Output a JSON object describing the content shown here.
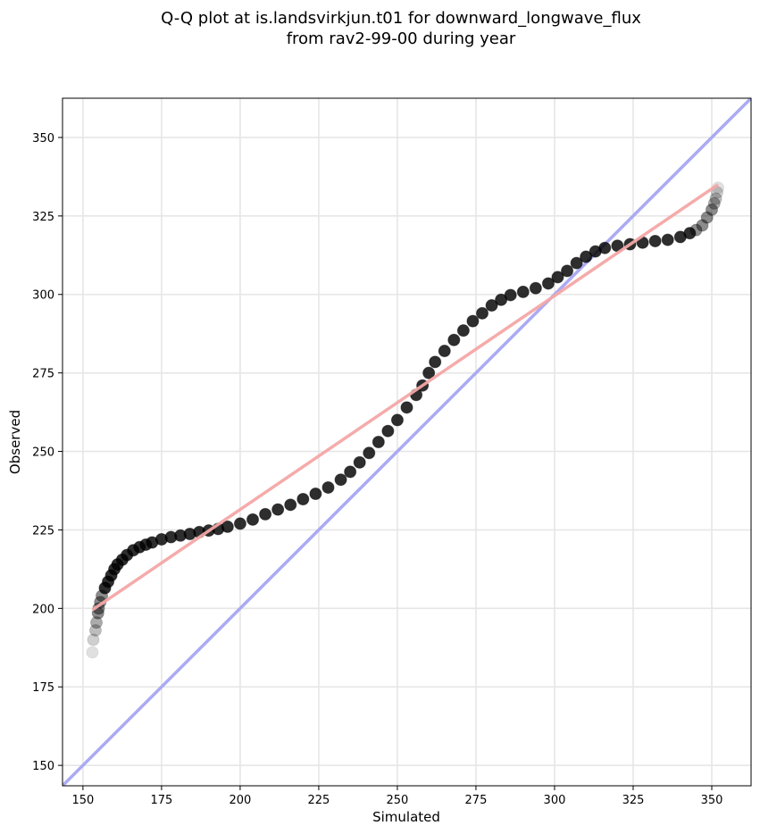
{
  "chart_data": {
    "type": "scatter",
    "title": [
      "Q-Q plot at is.landsvirkjun.t01 for downward_longwave_flux",
      "from rav2-99-00 during year"
    ],
    "xlabel": "Simulated",
    "ylabel": "Observed",
    "xlim": [
      143.5,
      362.5
    ],
    "ylim": [
      143.5,
      362.5
    ],
    "xticks": [
      150,
      175,
      200,
      225,
      250,
      275,
      300,
      325,
      350
    ],
    "yticks": [
      150,
      175,
      200,
      225,
      250,
      275,
      300,
      325,
      350
    ],
    "grid": true,
    "series": [
      {
        "kind": "quantile-points",
        "color": "#000000",
        "points": [
          [
            153.0,
            186.0
          ],
          [
            153.3,
            190.0
          ],
          [
            154.0,
            193.0
          ],
          [
            154.3,
            195.5
          ],
          [
            154.8,
            198.5
          ],
          [
            155.0,
            200.0
          ],
          [
            155.5,
            202.0
          ],
          [
            156.0,
            204.0
          ],
          [
            157.0,
            206.5
          ],
          [
            158.0,
            208.5
          ],
          [
            159.0,
            210.5
          ],
          [
            160.0,
            212.5
          ],
          [
            161.0,
            214.0
          ],
          [
            162.5,
            215.5
          ],
          [
            164.0,
            217.0
          ],
          [
            166.0,
            218.5
          ],
          [
            168.0,
            219.5
          ],
          [
            170.0,
            220.3
          ],
          [
            172.0,
            221.0
          ],
          [
            175.0,
            222.0
          ],
          [
            178.0,
            222.7
          ],
          [
            181.0,
            223.2
          ],
          [
            184.0,
            223.7
          ],
          [
            187.0,
            224.3
          ],
          [
            190.0,
            224.8
          ],
          [
            193.0,
            225.3
          ],
          [
            196.0,
            226.0
          ],
          [
            200.0,
            227.0
          ],
          [
            204.0,
            228.3
          ],
          [
            208.0,
            230.0
          ],
          [
            212.0,
            231.5
          ],
          [
            216.0,
            233.0
          ],
          [
            220.0,
            234.8
          ],
          [
            224.0,
            236.5
          ],
          [
            228.0,
            238.5
          ],
          [
            232.0,
            241.0
          ],
          [
            235.0,
            243.5
          ],
          [
            238.0,
            246.5
          ],
          [
            241.0,
            249.5
          ],
          [
            244.0,
            253.0
          ],
          [
            247.0,
            256.5
          ],
          [
            250.0,
            260.0
          ],
          [
            253.0,
            264.0
          ],
          [
            256.0,
            268.0
          ],
          [
            258.0,
            271.0
          ],
          [
            260.0,
            275.0
          ],
          [
            262.0,
            278.5
          ],
          [
            265.0,
            282.0
          ],
          [
            268.0,
            285.5
          ],
          [
            271.0,
            288.5
          ],
          [
            274.0,
            291.5
          ],
          [
            277.0,
            294.0
          ],
          [
            280.0,
            296.5
          ],
          [
            283.0,
            298.3
          ],
          [
            286.0,
            299.8
          ],
          [
            290.0,
            300.8
          ],
          [
            294.0,
            302.0
          ],
          [
            298.0,
            303.5
          ],
          [
            301.0,
            305.5
          ],
          [
            304.0,
            307.5
          ],
          [
            307.0,
            310.0
          ],
          [
            310.0,
            312.0
          ],
          [
            313.0,
            313.7
          ],
          [
            316.0,
            314.8
          ],
          [
            320.0,
            315.5
          ],
          [
            324.0,
            316.0
          ],
          [
            328.0,
            316.5
          ],
          [
            332.0,
            317.0
          ],
          [
            336.0,
            317.4
          ],
          [
            340.0,
            318.3
          ],
          [
            343.0,
            319.5
          ],
          [
            345.0,
            320.5
          ],
          [
            347.0,
            322.0
          ],
          [
            348.5,
            324.5
          ],
          [
            350.0,
            327.0
          ],
          [
            350.8,
            329.0
          ],
          [
            351.3,
            330.5
          ],
          [
            351.7,
            332.5
          ],
          [
            352.0,
            334.0
          ]
        ]
      },
      {
        "kind": "fit-line",
        "color": "#f4a6a6",
        "points": [
          [
            153.0,
            199.5
          ],
          [
            352.0,
            335.0
          ]
        ]
      },
      {
        "kind": "identity-line",
        "color": "#aaaaf4",
        "points": [
          [
            143.5,
            143.5
          ],
          [
            362.5,
            362.5
          ]
        ]
      }
    ]
  }
}
